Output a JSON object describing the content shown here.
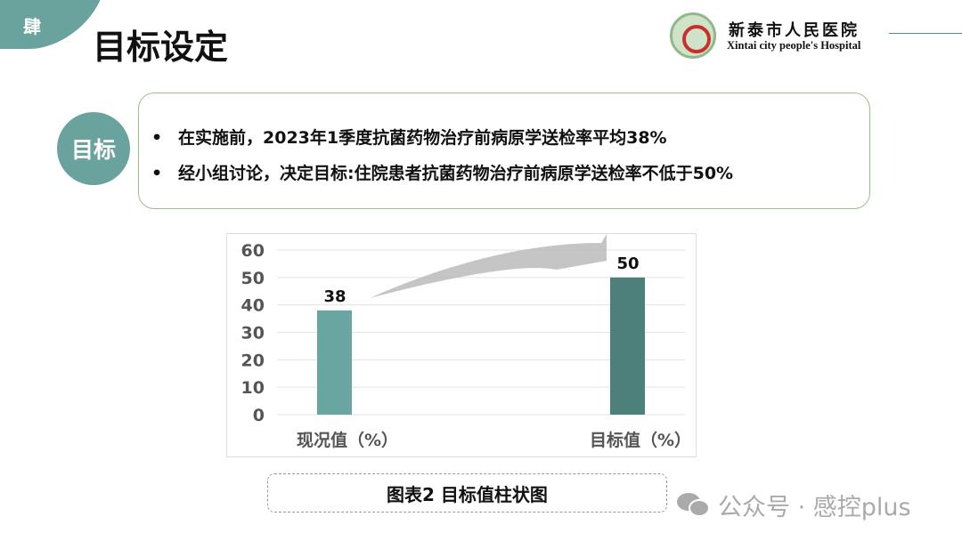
{
  "section": {
    "number": "肆",
    "title": "目标设定"
  },
  "hospital": {
    "name_cn": "新泰市人民医院",
    "name_en": "Xintai city people's Hospital"
  },
  "goal": {
    "label": "目标",
    "bullets": [
      "在实施前，2023年1季度抗菌药物治疗前病原学送检率平均38%",
      "经小组讨论，决定目标:住院患者抗菌药物治疗前病原学送检率不低于50%"
    ]
  },
  "chart_data": {
    "type": "bar",
    "categories": [
      "现况值（%）",
      "目标值（%）"
    ],
    "values": [
      38,
      50
    ],
    "data_labels": [
      "38",
      "50"
    ],
    "ylim": [
      0,
      60
    ],
    "yticks": [
      0,
      10,
      20,
      30,
      40,
      50,
      60
    ],
    "grid": true,
    "colors": [
      "#6aa6a1",
      "#4e807b"
    ],
    "title": "",
    "xlabel": "",
    "ylabel": ""
  },
  "caption": "图表2 目标值柱状图",
  "watermark": "公众号 · 感控plus"
}
